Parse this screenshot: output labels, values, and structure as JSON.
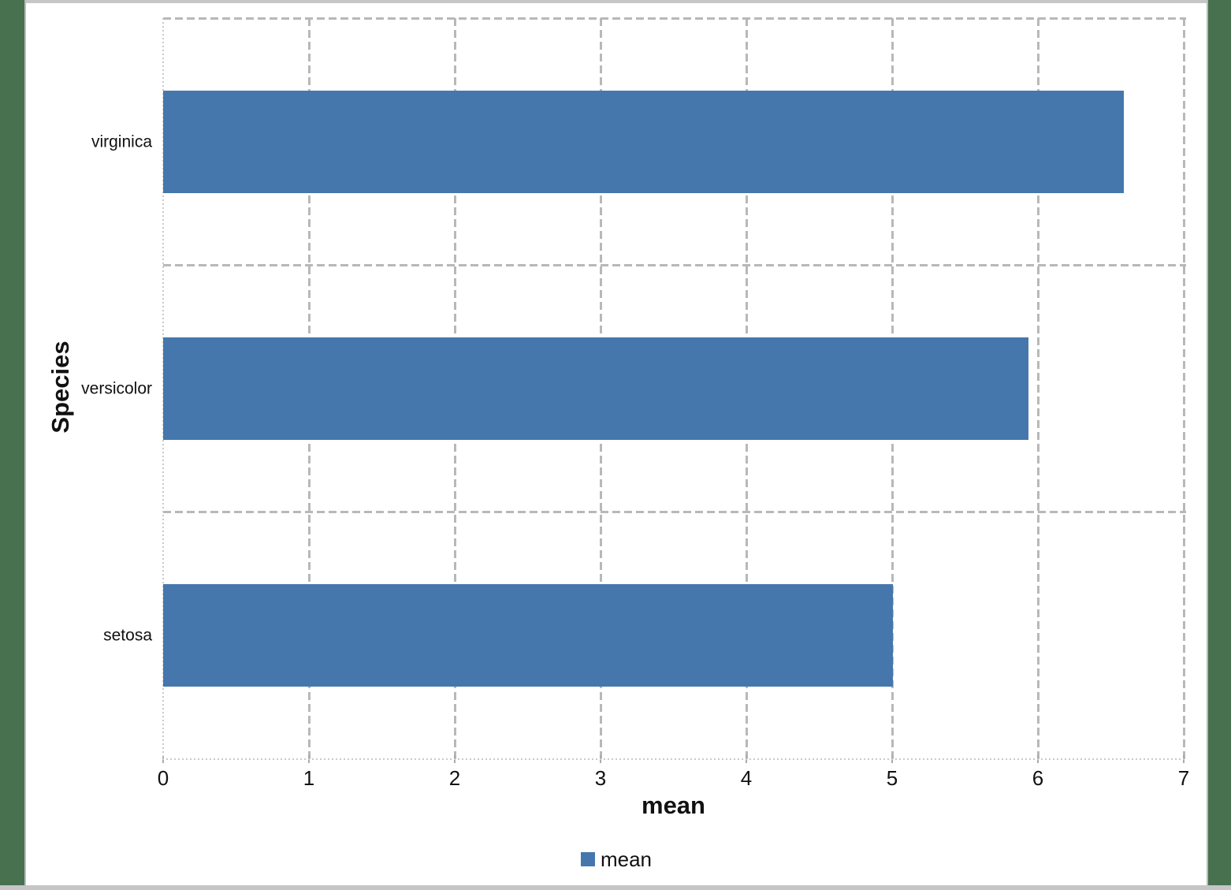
{
  "chart_data": {
    "type": "bar",
    "orientation": "horizontal",
    "title": "",
    "xlabel": "mean",
    "ylabel": "Species",
    "categories": [
      "setosa",
      "versicolor",
      "virginica"
    ],
    "series": [
      {
        "name": "mean",
        "values": [
          5.006,
          5.936,
          6.588
        ],
        "color": "#4577ac"
      }
    ],
    "xlim": [
      0,
      7
    ],
    "xticks": [
      0,
      1,
      2,
      3,
      4,
      5,
      6,
      7
    ],
    "grid": true,
    "gridline_style": "dashed",
    "legend": {
      "position": "bottom-center",
      "entries": [
        "mean"
      ]
    }
  },
  "frame": {
    "background_color": "#47714f",
    "border_color": "#c6c6c6"
  },
  "layout_labels": {
    "x_axis_title": "mean",
    "y_axis_title": "Species",
    "legend_label": "mean"
  }
}
